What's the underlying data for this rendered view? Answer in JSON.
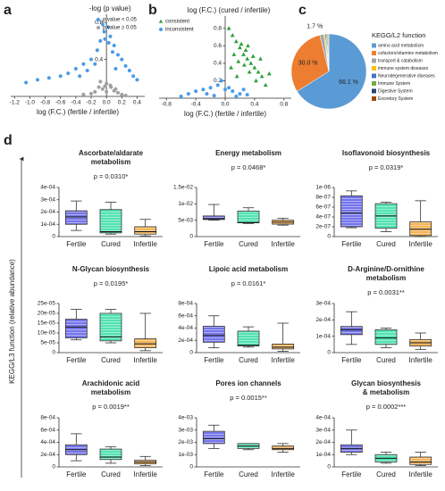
{
  "chart_data": [
    {
      "type": "scatter",
      "label": "a",
      "ylabel": "-log (p value)",
      "xlabel": "log (F.C.) (fertile / infertile)",
      "xlim": [
        -1.25,
        0.5
      ],
      "ylim": [
        0,
        0.85
      ],
      "xticks": [
        -1.2,
        {
          "value": -1.0,
          "label": "-1.0"
        },
        -0.8,
        -0.6,
        -0.4,
        -0.2,
        {
          "value": 0,
          "label": "0.0"
        },
        0.2,
        0.4
      ],
      "yticks": [
        0.4,
        0.8
      ],
      "legend": "upper right",
      "series": [
        {
          "name": "p value < 0.05",
          "color": "#4a9be8",
          "marker": "circle",
          "x": [
            -0.05,
            0.02,
            -0.03,
            0.05,
            -0.08,
            0.1,
            -0.12,
            0.15,
            -0.2,
            0.2,
            -0.3,
            0.25,
            -0.4,
            -0.5,
            -0.6,
            -0.75,
            -0.9,
            -1.05,
            0.3,
            0.35,
            -0.15,
            0.08,
            -0.25,
            0.12,
            -0.35,
            0.4,
            -0.02,
            0.03
          ],
          "y": [
            0.78,
            0.75,
            0.7,
            0.65,
            0.6,
            0.55,
            0.5,
            0.45,
            0.4,
            0.4,
            0.35,
            0.33,
            0.3,
            0.25,
            0.22,
            0.2,
            0.18,
            0.15,
            0.28,
            0.22,
            0.35,
            0.48,
            0.28,
            0.3,
            0.22,
            0.18,
            0.62,
            0.58
          ]
        },
        {
          "name": "p value ≥ 0.05",
          "color": "#a0a0a0",
          "marker": "circle",
          "x": [
            -0.1,
            0.05,
            -0.05,
            0.1,
            0.0,
            -0.15,
            0.15,
            -0.2,
            0.2,
            -0.08,
            0.06,
            -0.3,
            0.25,
            0.0,
            -0.02,
            0.12
          ],
          "y": [
            0.1,
            0.12,
            0.08,
            0.06,
            0.14,
            0.05,
            0.04,
            0.03,
            0.02,
            0.16,
            0.1,
            0.02,
            0.01,
            0.05,
            0.11,
            0.08
          ]
        }
      ]
    },
    {
      "type": "scatter",
      "label": "b",
      "ylabel": "log (F.C.) (cured / infertile)",
      "xlabel": "log (F.C.) (fertile / infertile)",
      "xlim": [
        -0.9,
        0.9
      ],
      "ylim": [
        0,
        0.9
      ],
      "xticks": [
        -0.8,
        -0.4,
        {
          "value": 0,
          "label": "0.0"
        },
        0.4,
        0.8
      ],
      "yticks": [
        0.2,
        0.4,
        0.6,
        0.8
      ],
      "legend": "upper left",
      "series": [
        {
          "name": "consistent",
          "color": "#2e9e3a",
          "marker": "triangle",
          "x": [
            0.05,
            0.1,
            0.15,
            0.2,
            0.25,
            0.3,
            0.35,
            0.4,
            0.45,
            0.5,
            0.12,
            0.18,
            0.22,
            0.28,
            0.33,
            0.38,
            0.08,
            0.42,
            0.26,
            0.16,
            0.31,
            0.48,
            0.55,
            0.6
          ],
          "y": [
            0.8,
            0.72,
            0.65,
            0.58,
            0.5,
            0.45,
            0.4,
            0.35,
            0.3,
            0.25,
            0.5,
            0.42,
            0.62,
            0.55,
            0.3,
            0.48,
            0.35,
            0.2,
            0.38,
            0.25,
            0.6,
            0.45,
            0.15,
            0.28
          ]
        },
        {
          "name": "inconsistent",
          "color": "#4a9be8",
          "marker": "circle",
          "x": [
            -0.6,
            -0.5,
            -0.4,
            -0.3,
            -0.2,
            -0.1,
            0.0,
            0.1,
            0.2,
            -0.25,
            -0.15,
            0.05,
            0.15,
            0.3,
            -0.05,
            0.25
          ],
          "y": [
            0.02,
            0.05,
            0.08,
            0.1,
            0.12,
            0.15,
            0.1,
            0.08,
            0.05,
            0.05,
            0.03,
            0.12,
            0.02,
            0.04,
            0.2,
            0.1
          ]
        }
      ]
    },
    {
      "type": "pie",
      "label": "c",
      "legend_title": "KEGG/L2 function",
      "categories": [
        "amino acid metabolism",
        "cofactors/vitamins metabolism",
        "transport & catabolism",
        "immune system diseases",
        "Neurodegenerative diseases",
        "Immune System",
        "Digestive System",
        "Excretory System"
      ],
      "values": [
        66.1,
        30.0,
        1.7,
        0.6,
        0.5,
        0.5,
        0.3,
        0.3
      ],
      "value_labels": [
        "66.1 %",
        "30.0 %",
        "1.7 %",
        null,
        null,
        null,
        null,
        null
      ],
      "colors": [
        "#5b9bd5",
        "#ed7d31",
        "#a5a5a5",
        "#ffc000",
        "#4472c4",
        "#70ad47",
        "#264478",
        "#9e480e"
      ]
    },
    {
      "type": "box",
      "title": [
        "Ascorbate/aldarate",
        "metabolism"
      ],
      "annotation": "p = 0.0310*",
      "categories": [
        "Fertile",
        "Cured",
        "Infertile"
      ],
      "colors": [
        "#7474ea",
        "#52e2b2",
        "#f6b457"
      ],
      "ylim": [
        0,
        0.0004
      ],
      "yticks": [
        0,
        {
          "value": 0.0001,
          "label": "1e-04"
        },
        {
          "value": 0.0002,
          "label": "2e-04"
        },
        {
          "value": 0.0003,
          "label": "3e-04"
        },
        {
          "value": 0.0004,
          "label": "4e-04"
        }
      ],
      "boxes": [
        {
          "min": 5e-05,
          "q1": 0.0001,
          "median": 0.00016,
          "q3": 0.00021,
          "max": 0.00029
        },
        {
          "min": 2e-05,
          "q1": 3e-05,
          "median": 4e-05,
          "q3": 0.00022,
          "max": 0.00028
        },
        {
          "min": 5e-06,
          "q1": 2e-05,
          "median": 4e-05,
          "q3": 8e-05,
          "max": 0.00014
        }
      ]
    },
    {
      "type": "box",
      "title": [
        "Energy metabolism"
      ],
      "annotation": "p = 0.0468*",
      "categories": [
        "Fertile",
        "Cured",
        "Infertile"
      ],
      "colors": [
        "#7474ea",
        "#52e2b2",
        "#f6b457"
      ],
      "ylim": [
        0,
        0.015
      ],
      "yticks": [
        0,
        {
          "value": 0.005,
          "label": "5e-03"
        },
        {
          "value": 0.01,
          "label": "1e-02"
        },
        {
          "value": 0.015,
          "label": "1.5e-02"
        }
      ],
      "boxes": [
        {
          "min": 0.005,
          "q1": 0.0052,
          "median": 0.0055,
          "q3": 0.0063,
          "max": 0.0098
        },
        {
          "min": 0.004,
          "q1": 0.0042,
          "median": 0.0043,
          "q3": 0.0078,
          "max": 0.0088
        },
        {
          "min": 0.0035,
          "q1": 0.0038,
          "median": 0.0044,
          "q3": 0.005,
          "max": 0.0056
        }
      ]
    },
    {
      "type": "box",
      "title": [
        "Isoflavonoid biosynthesis"
      ],
      "annotation": "p = 0.0319*",
      "categories": [
        "Fertile",
        "Cured",
        "Infertile"
      ],
      "colors": [
        "#7474ea",
        "#52e2b2",
        "#f6b457"
      ],
      "ylim": [
        0,
        1e-06
      ],
      "yticks": [
        0,
        {
          "value": 2e-07,
          "label": "2e-07"
        },
        {
          "value": 4e-07,
          "label": "4e-07"
        },
        {
          "value": 6e-07,
          "label": "6e-07"
        },
        {
          "value": 8e-07,
          "label": "8e-07"
        },
        {
          "value": 1e-06,
          "label": "1e-06"
        }
      ],
      "boxes": [
        {
          "min": 1.8e-07,
          "q1": 2e-07,
          "median": 4.8e-07,
          "q3": 8.3e-07,
          "max": 9.3e-07
        },
        {
          "min": 1e-07,
          "q1": 1.7e-07,
          "median": 4.2e-07,
          "q3": 6.7e-07,
          "max": 7e-07
        },
        {
          "min": 0,
          "q1": 2e-08,
          "median": 1.5e-07,
          "q3": 3e-07,
          "max": 7.3e-07
        }
      ]
    },
    {
      "type": "box",
      "title": [
        "N-Glycan biosynthesis"
      ],
      "annotation": "p = 0.0195*",
      "categories": [
        "Fertile",
        "Cured",
        "Infertile"
      ],
      "colors": [
        "#7474ea",
        "#52e2b2",
        "#f6b457"
      ],
      "ylim": [
        0,
        0.00025
      ],
      "yticks": [
        0,
        {
          "value": 5e-05,
          "label": "5e-05"
        },
        {
          "value": 0.0001,
          "label": "10e-05"
        },
        {
          "value": 0.00015,
          "label": "15e-05"
        },
        {
          "value": 0.0002,
          "label": "20e-05"
        },
        {
          "value": 0.00025,
          "label": "25e-05"
        }
      ],
      "boxes": [
        {
          "min": 6.5e-05,
          "q1": 7.5e-05,
          "median": 0.00013,
          "q3": 0.00017,
          "max": 0.00022
        },
        {
          "min": 5e-05,
          "q1": 6e-05,
          "median": 8e-05,
          "q3": 0.0002,
          "max": 0.00022
        },
        {
          "min": 1e-05,
          "q1": 2.5e-05,
          "median": 4.5e-05,
          "q3": 7e-05,
          "max": 0.0002
        }
      ]
    },
    {
      "type": "box",
      "title": [
        "Lipoic acid metabolism"
      ],
      "annotation": "p = 0.0161*",
      "categories": [
        "Fertile",
        "Cured",
        "Infertile"
      ],
      "colors": [
        "#7474ea",
        "#52e2b2",
        "#f6b457"
      ],
      "ylim": [
        0,
        0.0008
      ],
      "yticks": [
        0,
        {
          "value": 0.0002,
          "label": "2e-04"
        },
        {
          "value": 0.0004,
          "label": "4e-04"
        },
        {
          "value": 0.0006,
          "label": "6e-04"
        },
        {
          "value": 0.0008,
          "label": "8e-04"
        }
      ],
      "boxes": [
        {
          "min": 8e-05,
          "q1": 0.00017,
          "median": 0.00028,
          "q3": 0.00043,
          "max": 0.0006
        },
        {
          "min": 9e-05,
          "q1": 0.00011,
          "median": 0.00012,
          "q3": 0.00035,
          "max": 0.00042
        },
        {
          "min": 2e-05,
          "q1": 6e-05,
          "median": 9e-05,
          "q3": 0.00014,
          "max": 0.00048
        }
      ]
    },
    {
      "type": "box",
      "title": [
        "D-Arginine/D-ornithine",
        "metabolism"
      ],
      "annotation": "p = 0.0031**",
      "categories": [
        "Fertile",
        "Cured",
        "Infertile"
      ],
      "colors": [
        "#7474ea",
        "#52e2b2",
        "#f6b457"
      ],
      "ylim": [
        0,
        0.0003
      ],
      "yticks": [
        0,
        {
          "value": 0.0001,
          "label": "1e-04"
        },
        {
          "value": 0.0002,
          "label": "2e-04"
        },
        {
          "value": 0.0003,
          "label": "3e-04"
        }
      ],
      "boxes": [
        {
          "min": 5e-05,
          "q1": 0.00011,
          "median": 0.00014,
          "q3": 0.00016,
          "max": 0.00025
        },
        {
          "min": 3e-05,
          "q1": 5e-05,
          "median": 9e-05,
          "q3": 0.00014,
          "max": 0.00015
        },
        {
          "min": 2e-05,
          "q1": 4e-05,
          "median": 6e-05,
          "q3": 8e-05,
          "max": 0.00012
        }
      ]
    },
    {
      "type": "box",
      "title": [
        "Arachidonic acid",
        "metabolism"
      ],
      "annotation": "p = 0.0019**",
      "categories": [
        "Fertile",
        "Cured",
        "Infertile"
      ],
      "colors": [
        "#7474ea",
        "#52e2b2",
        "#f6b457"
      ],
      "ylim": [
        0,
        0.0008
      ],
      "yticks": [
        0,
        {
          "value": 0.0002,
          "label": "2e-04"
        },
        {
          "value": 0.0004,
          "label": "4e-04"
        },
        {
          "value": 0.0006,
          "label": "6e-04"
        },
        {
          "value": 0.0008,
          "label": "8e-04"
        }
      ],
      "boxes": [
        {
          "min": 0.0001,
          "q1": 0.0002,
          "median": 0.00028,
          "q3": 0.00036,
          "max": 0.00054
        },
        {
          "min": 6e-05,
          "q1": 0.00012,
          "median": 0.00016,
          "q3": 0.00029,
          "max": 0.00033
        },
        {
          "min": 2e-05,
          "q1": 5e-05,
          "median": 8e-05,
          "q3": 0.00011,
          "max": 0.00017
        }
      ]
    },
    {
      "type": "box",
      "title": [
        "Pores ion channels"
      ],
      "annotation": "p = 0.0015**",
      "categories": [
        "Fertile",
        "Cured",
        "Infertile"
      ],
      "colors": [
        "#7474ea",
        "#52e2b2",
        "#f6b457"
      ],
      "ylim": [
        0,
        0.004
      ],
      "yticks": [
        0,
        {
          "value": 0.001,
          "label": "1e-03"
        },
        {
          "value": 0.002,
          "label": "2e-03"
        },
        {
          "value": 0.003,
          "label": "3e-03"
        },
        {
          "value": 0.004,
          "label": "4e-03"
        }
      ],
      "boxes": [
        {
          "min": 0.0015,
          "q1": 0.0019,
          "median": 0.0023,
          "q3": 0.0029,
          "max": 0.0034
        },
        {
          "min": 0.0014,
          "q1": 0.0015,
          "median": 0.0017,
          "q3": 0.0019,
          "max": 0.0019
        },
        {
          "min": 0.0012,
          "q1": 0.0014,
          "median": 0.0015,
          "q3": 0.0017,
          "max": 0.0019
        }
      ]
    },
    {
      "type": "box",
      "title": [
        "Glycan biosynthesis",
        "& metabolism"
      ],
      "annotation": "p = 0.0002***",
      "categories": [
        "Fertile",
        "Cured",
        "Infertile"
      ],
      "colors": [
        "#7474ea",
        "#52e2b2",
        "#f6b457"
      ],
      "ylim": [
        0,
        0.0004
      ],
      "yticks": [
        0,
        {
          "value": 0.0001,
          "label": "1e-04"
        },
        {
          "value": 0.0002,
          "label": "2e-04"
        },
        {
          "value": 0.0003,
          "label": "3e-04"
        },
        {
          "value": 0.0004,
          "label": "4e-04"
        }
      ],
      "boxes": [
        {
          "min": 0.0001,
          "q1": 0.00012,
          "median": 0.00015,
          "q3": 0.00018,
          "max": 0.0003
        },
        {
          "min": 3e-05,
          "q1": 4e-05,
          "median": 7e-05,
          "q3": 0.0001,
          "max": 0.00012
        },
        {
          "min": 1e-05,
          "q1": 2e-05,
          "median": 4e-05,
          "q3": 8e-05,
          "max": 0.00012
        }
      ]
    }
  ],
  "panel_d": {
    "label": "d",
    "ylabel": "KEGG/L3 function (relative abundance)"
  }
}
